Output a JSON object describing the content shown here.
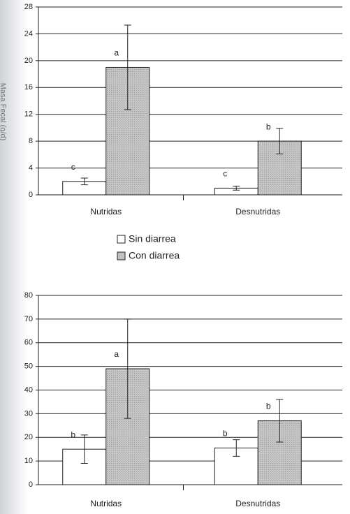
{
  "chart_data": [
    {
      "type": "bar",
      "y_label": "Masa Fecal (g/d)",
      "categories": [
        "Nutridas",
        "Desnutridas"
      ],
      "series": [
        {
          "name": "Sin diarrea",
          "color": "#ffffff",
          "values": [
            2.0,
            1.0
          ],
          "errors": [
            0.5,
            0.3
          ],
          "labels": [
            "c",
            "c"
          ]
        },
        {
          "name": "Con diarrea",
          "color": "#c4c4c4",
          "values": [
            19.0,
            8.0
          ],
          "errors": [
            6.3,
            1.9
          ],
          "labels": [
            "a",
            "b"
          ]
        }
      ],
      "ylim": [
        0,
        28
      ],
      "yticks": [
        0,
        4,
        8,
        12,
        16,
        20,
        24,
        28
      ],
      "grid": true
    },
    {
      "type": "bar",
      "categories": [
        "Nutridas",
        "Desnutridas"
      ],
      "series": [
        {
          "color": "#ffffff",
          "values": [
            15,
            15.5
          ],
          "errors": [
            6,
            3.5
          ],
          "labels": [
            "b",
            "b"
          ]
        },
        {
          "color": "#c4c4c4",
          "values": [
            49,
            27
          ],
          "errors": [
            21,
            9
          ],
          "labels": [
            "a",
            "b"
          ]
        }
      ],
      "ylim": [
        0,
        80
      ],
      "yticks": [
        0,
        10,
        20,
        30,
        40,
        50,
        60,
        70,
        80
      ],
      "grid": true
    }
  ]
}
